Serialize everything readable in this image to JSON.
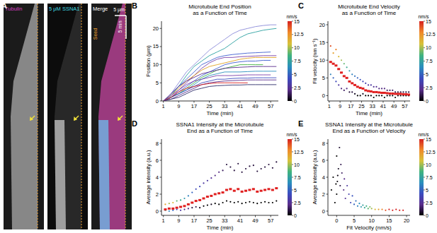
{
  "panel_a": {
    "letter": "A",
    "labels": [
      "Tubulin",
      "5 μM SSNA1",
      "Merge"
    ],
    "seed": "Seed",
    "scale_x": "5 μm",
    "scale_y": "5 min"
  },
  "chart_data": [
    {
      "type": "line",
      "panel": "B",
      "title": [
        "Microtubule End Position",
        "as a Function of Time"
      ],
      "x_label": "Time (min)",
      "y_label": "Position (μm)",
      "xlim": [
        0,
        61
      ],
      "xticks": [
        1,
        9,
        17,
        25,
        33,
        41,
        49,
        57
      ],
      "ylim": [
        0,
        22
      ],
      "yticks": [
        0,
        5,
        10,
        15,
        20
      ],
      "colorbar": {
        "label": "nm/s",
        "lim": [
          0,
          15
        ],
        "ticks": [
          0,
          2.5,
          5,
          7.5,
          10,
          12.5,
          15
        ],
        "colors": [
          "#000000",
          "#5a2d8c",
          "#3b4cc0",
          "#2a8fbd",
          "#3fb37f",
          "#d7c23a",
          "#f08a2a",
          "#d62020"
        ]
      },
      "x": [
        1,
        5,
        9,
        13,
        17,
        21,
        25,
        29,
        33,
        37,
        41,
        45,
        49,
        53,
        57,
        60
      ],
      "series": [
        {
          "color": "#8a8ad8",
          "values": [
            0,
            2,
            5,
            8,
            10,
            12,
            14,
            15.5,
            17,
            18.5,
            19.5,
            20,
            20.5,
            20.8,
            21,
            21
          ]
        },
        {
          "color": "#2aa0a0",
          "values": [
            0,
            1.5,
            4,
            7,
            9.5,
            11,
            12.5,
            13.5,
            14.5,
            16,
            17.5,
            18.5,
            19,
            19.5,
            19.8,
            20
          ]
        },
        {
          "color": "#3f5fd0",
          "values": [
            0,
            2,
            4,
            6,
            8,
            10,
            11,
            12,
            12.5,
            12.8,
            13,
            13.2,
            13.3,
            13.4,
            13.5,
            null
          ]
        },
        {
          "color": "#7a3fa8",
          "values": [
            0,
            1,
            3,
            5,
            7,
            9,
            10.5,
            11.5,
            12,
            12,
            12.2,
            12.3,
            12.4,
            12.5,
            12.5,
            12.5
          ]
        },
        {
          "color": "#e0a020",
          "values": [
            0,
            1.5,
            3.5,
            5.5,
            7,
            8.5,
            9.5,
            10,
            10.5,
            11,
            11.5,
            11.8,
            12,
            12,
            12,
            12
          ]
        },
        {
          "color": "#3f5fd0",
          "values": [
            0,
            1,
            2.5,
            4,
            5.5,
            7,
            8,
            9,
            10,
            10.5,
            10.8,
            11,
            11,
            11.2,
            11.2,
            null
          ]
        },
        {
          "color": "#40b040",
          "values": [
            0,
            1,
            2,
            3.5,
            5,
            6.5,
            7.5,
            8.5,
            9,
            9.5,
            10,
            10,
            10,
            10,
            null,
            null
          ]
        },
        {
          "color": "#5a2d8c",
          "values": [
            0,
            2,
            4,
            5.5,
            6.5,
            7.5,
            8,
            8.5,
            9,
            9.2,
            9.3,
            9.4,
            9.5,
            9.5,
            9.5,
            9.5
          ]
        },
        {
          "color": "#2a8fbd",
          "values": [
            0,
            1,
            2,
            3,
            4.5,
            6,
            7,
            7.5,
            8,
            8,
            8,
            8.1,
            8.2,
            8.2,
            8.2,
            8.2
          ]
        },
        {
          "color": "#7a3fa8",
          "values": [
            0,
            1.5,
            3,
            4.5,
            5.5,
            6,
            6.5,
            7,
            7,
            7,
            7.1,
            7.2,
            7.2,
            7.2,
            7.2,
            null
          ]
        },
        {
          "color": "#3b4cc0",
          "values": [
            0,
            1,
            2,
            3,
            4,
            5,
            5.5,
            6,
            6,
            6.2,
            6.3,
            6.3,
            6.4,
            6.4,
            6.4,
            6.4
          ]
        },
        {
          "color": "#5a2d8c",
          "values": [
            0,
            0.5,
            1.5,
            2.5,
            3.5,
            4.5,
            5,
            5.3,
            5.5,
            5.6,
            5.7,
            5.8,
            5.8,
            5.8,
            5.8,
            5.8
          ]
        },
        {
          "color": "#d62020",
          "values": [
            0,
            1,
            2.5,
            3.5,
            4,
            4.5,
            4.8,
            5,
            5,
            5,
            5,
            5,
            null,
            null,
            null,
            null
          ]
        },
        {
          "color": "#2d2d6a",
          "values": [
            0,
            0.5,
            1,
            2,
            3,
            3.5,
            4,
            4.2,
            4.3,
            4.4,
            4.4,
            4.5,
            4.5,
            4.5,
            4.5,
            4.5
          ]
        }
      ]
    },
    {
      "type": "scatter",
      "panel": "C",
      "title": [
        "Microtubule End Velocity",
        "as a Function of Time"
      ],
      "x_label": "Time (min)",
      "y_label": "Fit velocity (nm s⁻¹)",
      "xlim": [
        0,
        61
      ],
      "xticks": [
        1,
        9,
        17,
        25,
        33,
        41,
        49,
        57
      ],
      "ylim": [
        -1.5,
        21
      ],
      "yticks": [
        0,
        5,
        10,
        15,
        20
      ],
      "colorbar": {
        "label": "nm/s",
        "lim": [
          0,
          15
        ],
        "ticks": [
          0,
          2.5,
          5,
          7.5,
          10,
          12.5,
          15
        ],
        "colors": [
          "#000000",
          "#5a2d8c",
          "#3b4cc0",
          "#2a8fbd",
          "#3fb37f",
          "#d7c23a",
          "#f08a2a",
          "#d62020"
        ]
      },
      "series": [
        {
          "marker": "dot",
          "x": [
            2,
            2,
            4,
            4,
            6,
            6,
            8,
            8,
            10,
            10,
            12,
            12,
            14,
            14,
            16,
            16,
            18,
            18,
            20,
            20,
            22,
            22,
            24,
            24,
            26,
            26,
            28,
            28,
            30,
            30,
            32,
            32,
            34,
            34,
            36,
            36,
            38,
            38,
            40,
            40,
            42,
            42,
            44,
            44,
            46,
            46,
            48,
            48,
            50,
            50,
            52,
            52,
            54,
            54,
            56,
            56,
            58,
            58,
            60,
            60
          ],
          "values": [
            14,
            6,
            12,
            5,
            13,
            4,
            11,
            3,
            10,
            2,
            9,
            1.5,
            8,
            2,
            7,
            1,
            6,
            1,
            5.5,
            0.5,
            5,
            0,
            4.5,
            0,
            4,
            0.5,
            3.5,
            0,
            3,
            0,
            3,
            0,
            2.5,
            -0.5,
            2.5,
            0,
            2,
            0,
            2,
            0,
            2,
            -0.5,
            1.5,
            0,
            1.5,
            0,
            1.5,
            0,
            1,
            -0.5,
            1,
            0,
            1,
            0,
            1,
            0,
            1,
            0,
            1,
            0
          ],
          "velocity": [
            14,
            6,
            12,
            5,
            13,
            4,
            11,
            3,
            10,
            2,
            9,
            1.5,
            8,
            2,
            7,
            1,
            6,
            1,
            5.5,
            0.5,
            5,
            0,
            4.5,
            0,
            4,
            0.5,
            3.5,
            0,
            3,
            0,
            3,
            0,
            2.5,
            -0.5,
            2.5,
            0,
            2,
            0,
            2,
            0,
            2,
            -0.5,
            1.5,
            0,
            1.5,
            0,
            1.5,
            0,
            1,
            -0.5,
            1,
            0,
            1,
            0,
            1,
            0,
            1,
            0,
            1,
            0
          ]
        },
        {
          "marker": "square",
          "color": "#e02020",
          "x": [
            2,
            4,
            6,
            8,
            10,
            12,
            14,
            16,
            18,
            20,
            22,
            24,
            26,
            28,
            30,
            32,
            34,
            36,
            38,
            40,
            42,
            44,
            46,
            48,
            50,
            52,
            54,
            56,
            58,
            60
          ],
          "values": [
            9.5,
            9,
            8.5,
            7.5,
            6.5,
            5.5,
            5,
            4,
            3.5,
            3,
            2.5,
            2.2,
            2,
            1.5,
            1.3,
            1.2,
            1,
            1,
            0.9,
            0.8,
            0.8,
            0.7,
            0.6,
            0.6,
            0.5,
            0.5,
            0.5,
            0.4,
            0.4,
            0.3
          ]
        }
      ]
    },
    {
      "type": "scatter",
      "panel": "D",
      "title": [
        "SSNA1 Intensity at the Microtubule",
        "End as a Function of Time"
      ],
      "x_label": "Time (min)",
      "y_label": "Average intensity (a.u.)",
      "xlim": [
        0,
        61
      ],
      "xticks": [
        1,
        9,
        17,
        25,
        33,
        41,
        49,
        57
      ],
      "ylim": [
        -0.5,
        8.5
      ],
      "yticks": [
        0,
        2,
        4,
        6,
        8
      ],
      "colorbar": {
        "label": "nm/s",
        "lim": [
          0,
          15
        ],
        "ticks": [
          0,
          2.5,
          5,
          7.5,
          10,
          12.5,
          15
        ],
        "colors": [
          "#000000",
          "#5a2d8c",
          "#3b4cc0",
          "#2a8fbd",
          "#3fb37f",
          "#d7c23a",
          "#f08a2a",
          "#d62020"
        ]
      },
      "series": [
        {
          "marker": "dot",
          "x": [
            2,
            2,
            4,
            4,
            6,
            6,
            8,
            8,
            10,
            10,
            12,
            12,
            14,
            14,
            16,
            16,
            18,
            18,
            20,
            20,
            22,
            22,
            24,
            24,
            26,
            26,
            28,
            28,
            30,
            30,
            32,
            32,
            34,
            34,
            36,
            36,
            38,
            38,
            40,
            40,
            42,
            42,
            44,
            44,
            46,
            46,
            48,
            48,
            50,
            50,
            52,
            52,
            54,
            54,
            56,
            56,
            58,
            58,
            60,
            60
          ],
          "values": [
            0.8,
            0.1,
            0.9,
            0,
            1,
            0.1,
            1.2,
            0.2,
            1.3,
            0.1,
            1.5,
            0.2,
            1.8,
            0.3,
            2.2,
            0.4,
            2.6,
            0.5,
            2.9,
            0.4,
            3.3,
            0.6,
            3.6,
            0.7,
            3.9,
            0.8,
            4.2,
            0.9,
            4.6,
            0.8,
            4.8,
            1,
            5.5,
            1.2,
            5.2,
            1.1,
            4.8,
            1,
            5.6,
            1.1,
            4.6,
            0.9,
            5,
            1,
            5.3,
            1.1,
            5.4,
            1,
            4.7,
            0.9,
            5,
            1,
            5.2,
            1.1,
            5.5,
            1,
            5.1,
            1,
            5.8,
            1.2
          ],
          "velocity": [
            12,
            8,
            10,
            6,
            11,
            5,
            9,
            4,
            8,
            3,
            7,
            2,
            6,
            2,
            5,
            1,
            4,
            1,
            4,
            0.5,
            3,
            0,
            3,
            0,
            2.5,
            0.5,
            2,
            0,
            2,
            0,
            1.5,
            0,
            1,
            0,
            1,
            0,
            1,
            0,
            1,
            0,
            1,
            0,
            1,
            0,
            1,
            0,
            1,
            0,
            1,
            0,
            1,
            0,
            1,
            0,
            1,
            0,
            1,
            0,
            1,
            0
          ]
        },
        {
          "marker": "square",
          "color": "#e02020",
          "x": [
            2,
            4,
            6,
            8,
            10,
            12,
            14,
            16,
            18,
            20,
            22,
            24,
            26,
            28,
            30,
            32,
            34,
            36,
            38,
            40,
            42,
            44,
            46,
            48,
            50,
            52,
            54,
            56,
            58,
            60
          ],
          "values": [
            0.2,
            0.3,
            0.3,
            0.4,
            0.5,
            0.6,
            0.8,
            1,
            1.2,
            1.3,
            1.5,
            1.7,
            1.8,
            2,
            2.1,
            2.2,
            2.5,
            2.6,
            2.4,
            2.6,
            2.3,
            2.4,
            2.5,
            2.6,
            2.3,
            2.4,
            2.5,
            2.6,
            2.5,
            2.7
          ]
        }
      ]
    },
    {
      "type": "scatter",
      "panel": "E",
      "title": [
        "SSNA1 Intensity at the Microtubule",
        "End as a Function of Velocity"
      ],
      "x_label": "Fit Velocity (nm/s)",
      "y_label": "Average intensity (a.u.)",
      "xlim": [
        -2.5,
        21
      ],
      "xticks": [
        0,
        5,
        10,
        15,
        20
      ],
      "ylim": [
        -0.5,
        8.5
      ],
      "yticks": [
        0,
        2,
        4,
        6,
        8
      ],
      "colorbar": {
        "label": "nm/s",
        "lim": [
          0,
          15
        ],
        "ticks": [
          0,
          2.5,
          5,
          7.5,
          10,
          12.5,
          15
        ],
        "colors": [
          "#000000",
          "#5a2d8c",
          "#3b4cc0",
          "#2a8fbd",
          "#3fb37f",
          "#d7c23a",
          "#f08a2a",
          "#d62020"
        ]
      },
      "series": [
        {
          "marker": "dot",
          "x": [
            -1,
            0,
            0.5,
            1,
            0,
            -0.5,
            0.2,
            1.5,
            2,
            2.5,
            3,
            3.5,
            4,
            4.5,
            5,
            5.5,
            6,
            6.5,
            7,
            7.5,
            8,
            8.5,
            9,
            9.5,
            10,
            11,
            12,
            13,
            14,
            15,
            16,
            17,
            18,
            19,
            -1.5,
            0.8,
            0.3,
            1.2,
            2.2,
            -0.2
          ],
          "values": [
            4,
            6.5,
            5,
            3,
            2,
            1,
            3.5,
            4.5,
            2.5,
            1.5,
            3,
            2,
            1,
            1.8,
            0.8,
            1.2,
            0.6,
            0.9,
            0.5,
            0.7,
            0.4,
            0.6,
            0.3,
            0.5,
            0.3,
            0.2,
            0.2,
            0.2,
            0.1,
            0.2,
            0.1,
            0.2,
            0.1,
            0.1,
            2.5,
            7.5,
            4.2,
            5.5,
            3.8,
            3.2
          ],
          "velocity": [
            -1,
            0,
            0.5,
            1,
            0,
            -0.5,
            0.2,
            1.5,
            2,
            2.5,
            3,
            3.5,
            4,
            4.5,
            5,
            5.5,
            6,
            6.5,
            7,
            7.5,
            8,
            8.5,
            9,
            9.5,
            10,
            11,
            12,
            13,
            14,
            15,
            16,
            17,
            18,
            19,
            -1.5,
            0.8,
            0.3,
            1.2,
            2.2,
            -0.2
          ]
        }
      ]
    }
  ]
}
